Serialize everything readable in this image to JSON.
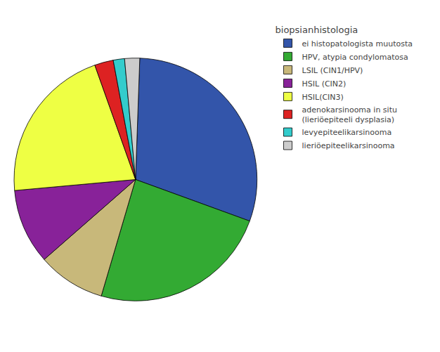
{
  "chart_data": {
    "type": "pie",
    "title": "biopsianhistologia",
    "categories": [
      "ei histopatologista muutosta",
      "HPV, atypia condylomatosa",
      "LSIL (CIN1/HPV)",
      "HSIL (CIN2)",
      "HSIL(CIN3)",
      "adenokarsinooma in situ\n(lieriöepiteeli dysplasia)",
      "levyepiteelikarsinooma",
      "lieriöepiteelikarsinooma"
    ],
    "values": [
      30.0,
      24.0,
      9.0,
      10.0,
      21.0,
      2.5,
      1.5,
      2.0
    ],
    "colors": [
      "#3355aa",
      "#33aa33",
      "#c8b87a",
      "#882299",
      "#eeff44",
      "#dd2222",
      "#33cccc",
      "#cccccc"
    ],
    "legend": "upper right"
  }
}
